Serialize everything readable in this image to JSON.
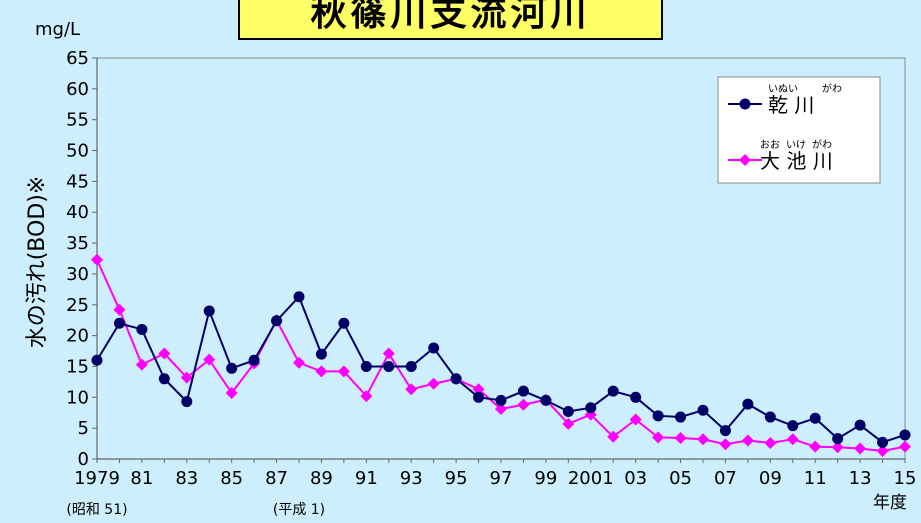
{
  "chart_data": {
    "type": "line",
    "title": "秋篠川支流河川",
    "unit_label": "mg/L",
    "ylabel": "水の汚れ(BOD)※",
    "x_unit_label": "年度",
    "ylim": [
      0,
      65
    ],
    "yticks": [
      0,
      5,
      10,
      15,
      20,
      25,
      30,
      35,
      40,
      45,
      50,
      55,
      60,
      65
    ],
    "x": [
      1979,
      1980,
      1981,
      1982,
      1983,
      1984,
      1985,
      1986,
      1987,
      1988,
      1989,
      1990,
      1991,
      1992,
      1993,
      1994,
      1995,
      1996,
      1997,
      1998,
      1999,
      2000,
      2001,
      2002,
      2003,
      2004,
      2005,
      2006,
      2007,
      2008,
      2009,
      2010,
      2011,
      2012,
      2013,
      2014,
      2015
    ],
    "xtick_values": [
      1979,
      1981,
      1983,
      1985,
      1987,
      1989,
      1991,
      1993,
      1995,
      1997,
      1999,
      2001,
      2003,
      2005,
      2007,
      2009,
      2011,
      2013,
      2015
    ],
    "xtick_labels": [
      "1979",
      "81",
      "83",
      "85",
      "87",
      "89",
      "91",
      "93",
      "95",
      "97",
      "99",
      "2001",
      "03",
      "05",
      "07",
      "09",
      "11",
      "13",
      "15"
    ],
    "era_notes": [
      {
        "x": 1979,
        "text": "(昭和 51)"
      },
      {
        "x": 1988,
        "text": "(平成 1)"
      }
    ],
    "legend_position": "top-right",
    "grid": false,
    "series": [
      {
        "name": "乾 川",
        "ruby": [
          "いぬい",
          "がわ"
        ],
        "color": "#000066",
        "marker": "circle",
        "values": [
          16,
          22,
          21,
          13,
          9.3,
          24,
          14.7,
          16,
          22.4,
          26.3,
          17,
          22,
          15,
          15,
          15,
          18,
          13,
          10,
          9.5,
          11,
          9.5,
          7.7,
          8.3,
          11,
          10,
          7,
          6.8,
          7.9,
          4.6,
          8.9,
          6.8,
          5.4,
          6.6,
          3.3,
          5.5,
          2.7,
          3.9
        ]
      },
      {
        "name": "大 池 川",
        "ruby": [
          "おお",
          "いけ",
          "がわ"
        ],
        "color": "#ff00ff",
        "marker": "diamond",
        "values": [
          32.3,
          24.2,
          15.3,
          17.1,
          13.2,
          16.1,
          10.7,
          15.5,
          22.5,
          15.6,
          14.2,
          14.2,
          10.2,
          17.1,
          11.3,
          12.2,
          13,
          11.3,
          8.1,
          8.8,
          9.6,
          5.7,
          7.2,
          3.6,
          6.4,
          3.5,
          3.4,
          3.2,
          2.4,
          3,
          2.6,
          3.2,
          2,
          1.9,
          1.7,
          1.3,
          2
        ]
      }
    ]
  }
}
